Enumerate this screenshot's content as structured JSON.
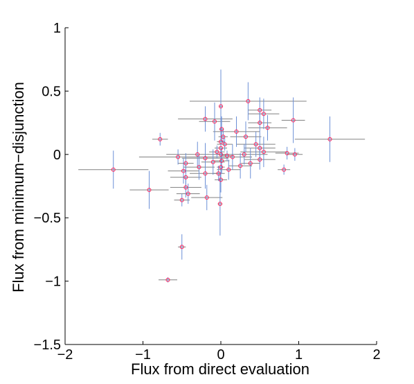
{
  "chart_data": {
    "type": "scatter",
    "title": "",
    "xlabel": "Flux from direct evaluation",
    "ylabel": "Flux from minimum−disjunction",
    "xlim": [
      -2,
      2
    ],
    "ylim": [
      -1.5,
      1
    ],
    "xticks": [
      -2,
      -1,
      0,
      1,
      2
    ],
    "xtick_labels": [
      "−2",
      "−1",
      "0",
      "1",
      "2"
    ],
    "yticks": [
      -1.5,
      -1,
      -0.5,
      0,
      0.5,
      1
    ],
    "ytick_labels": [
      "−1.5",
      "−1",
      "−0.5",
      "0",
      "0.5",
      "1"
    ],
    "grid": false,
    "marker": "circle",
    "colors": {
      "marker": "#ff1f5b",
      "x_error": "#808080",
      "y_error": "#6b8fd6",
      "axes": "#000000"
    },
    "points": [
      {
        "x": 0,
        "y": 0.38,
        "xerr": 0.02,
        "yerr": 0.29
      },
      {
        "x": 0.01,
        "y": 0.2,
        "xerr": 0.03,
        "yerr": 0.1
      },
      {
        "x": 0,
        "y": 0.1,
        "xerr": 0.05,
        "yerr": 0.1
      },
      {
        "x": 0,
        "y": 0.05,
        "xerr": 0.08,
        "yerr": 0.08
      },
      {
        "x": 0,
        "y": 0,
        "xerr": 0.05,
        "yerr": 0.1
      },
      {
        "x": 0.01,
        "y": -0.05,
        "xerr": 0.1,
        "yerr": 0.1
      },
      {
        "x": 0,
        "y": -0.1,
        "xerr": 0.05,
        "yerr": 0.08
      },
      {
        "x": 0,
        "y": -0.2,
        "xerr": 0.08,
        "yerr": 0.1
      },
      {
        "x": -0.01,
        "y": -0.39,
        "xerr": 0.03,
        "yerr": 0.25
      },
      {
        "x": 0.35,
        "y": 0.42,
        "xerr": 0.75,
        "yerr": 0.15
      },
      {
        "x": 0.5,
        "y": 0.35,
        "xerr": 0.15,
        "yerr": 0.1
      },
      {
        "x": 0.55,
        "y": 0.32,
        "xerr": 0.2,
        "yerr": 0.12
      },
      {
        "x": 0.5,
        "y": 0.25,
        "xerr": 0.15,
        "yerr": 0.08
      },
      {
        "x": -0.2,
        "y": 0.28,
        "xerr": 0.35,
        "yerr": 0.1
      },
      {
        "x": -0.08,
        "y": 0.26,
        "xerr": 0.2,
        "yerr": 0.15
      },
      {
        "x": 0.6,
        "y": 0.21,
        "xerr": 0.25,
        "yerr": 0.1
      },
      {
        "x": 0.2,
        "y": 0.18,
        "xerr": 0.3,
        "yerr": 0.12
      },
      {
        "x": 0.32,
        "y": 0.14,
        "xerr": 0.2,
        "yerr": 0.12
      },
      {
        "x": 0.93,
        "y": 0.27,
        "xerr": 0.15,
        "yerr": 0.18
      },
      {
        "x": 1.4,
        "y": 0.12,
        "xerr": 0.45,
        "yerr": 0.18
      },
      {
        "x": -0.78,
        "y": 0.12,
        "xerr": 0.1,
        "yerr": 0.05
      },
      {
        "x": 0.5,
        "y": 0.05,
        "xerr": 0.2,
        "yerr": 0.12
      },
      {
        "x": 0.45,
        "y": 0.08,
        "xerr": 0.25,
        "yerr": 0.1
      },
      {
        "x": 0.55,
        "y": 0.02,
        "xerr": 0.3,
        "yerr": 0.12
      },
      {
        "x": 0.85,
        "y": 0.01,
        "xerr": 0.15,
        "yerr": 0.05
      },
      {
        "x": 0.95,
        "y": 0.0,
        "xerr": 0.1,
        "yerr": 0.05
      },
      {
        "x": 0.3,
        "y": 0.0,
        "xerr": 0.3,
        "yerr": 0.08
      },
      {
        "x": 0.15,
        "y": -0.02,
        "xerr": 0.25,
        "yerr": 0.1
      },
      {
        "x": 0.5,
        "y": -0.04,
        "xerr": 0.2,
        "yerr": 0.08
      },
      {
        "x": 0.25,
        "y": -0.09,
        "xerr": 0.15,
        "yerr": 0.1
      },
      {
        "x": 0.38,
        "y": -0.07,
        "xerr": 0.12,
        "yerr": 0.12
      },
      {
        "x": 0.81,
        "y": -0.12,
        "xerr": 0.08,
        "yerr": 0.04
      },
      {
        "x": -0.3,
        "y": 0.0,
        "xerr": 0.4,
        "yerr": 0.1
      },
      {
        "x": -0.55,
        "y": -0.02,
        "xerr": 0.5,
        "yerr": 0.06
      },
      {
        "x": -0.2,
        "y": -0.03,
        "xerr": 0.3,
        "yerr": 0.12
      },
      {
        "x": -0.45,
        "y": -0.07,
        "xerr": 0.1,
        "yerr": 0.08
      },
      {
        "x": -0.28,
        "y": -0.1,
        "xerr": 0.2,
        "yerr": 0.1
      },
      {
        "x": -0.1,
        "y": -0.06,
        "xerr": 0.15,
        "yerr": 0.1
      },
      {
        "x": -1.38,
        "y": -0.12,
        "xerr": 0.45,
        "yerr": 0.15
      },
      {
        "x": -0.48,
        "y": -0.13,
        "xerr": 0.2,
        "yerr": 0.1
      },
      {
        "x": -0.45,
        "y": -0.18,
        "xerr": 0.2,
        "yerr": 0.1
      },
      {
        "x": -0.2,
        "y": -0.15,
        "xerr": 0.2,
        "yerr": 0.12
      },
      {
        "x": 0.1,
        "y": -0.12,
        "xerr": 0.15,
        "yerr": 0.08
      },
      {
        "x": -0.45,
        "y": -0.26,
        "xerr": 0.2,
        "yerr": 0.08
      },
      {
        "x": -0.42,
        "y": -0.31,
        "xerr": 0.15,
        "yerr": 0.08
      },
      {
        "x": -0.92,
        "y": -0.28,
        "xerr": 0.25,
        "yerr": 0.15
      },
      {
        "x": -0.5,
        "y": -0.36,
        "xerr": 0.1,
        "yerr": 0.05
      },
      {
        "x": -0.18,
        "y": -0.34,
        "xerr": 0.2,
        "yerr": 0.1
      },
      {
        "x": -0.5,
        "y": -0.73,
        "xerr": 0.05,
        "yerr": 0.1
      },
      {
        "x": -0.68,
        "y": -0.99,
        "xerr": 0.12,
        "yerr": 0.02
      },
      {
        "x": 0.05,
        "y": 0.08,
        "xerr": 0.1,
        "yerr": 0.05
      },
      {
        "x": -0.05,
        "y": 0.02,
        "xerr": 0.1,
        "yerr": 0.05
      },
      {
        "x": 0.08,
        "y": -0.01,
        "xerr": 0.08,
        "yerr": 0.04
      },
      {
        "x": -0.03,
        "y": -0.15,
        "xerr": 0.08,
        "yerr": 0.06
      },
      {
        "x": 0.03,
        "y": 0.14,
        "xerr": 0.06,
        "yerr": 0.06
      }
    ]
  }
}
